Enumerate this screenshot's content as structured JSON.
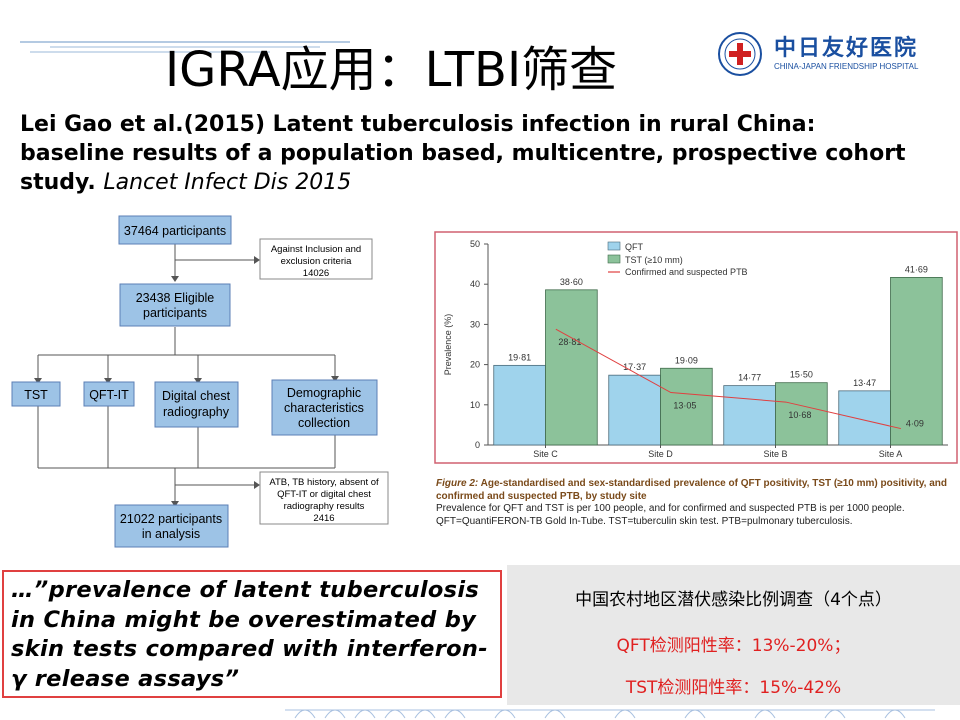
{
  "slide": {
    "title": "IGRA应用：LTBI筛查",
    "logo": {
      "name_cn": "中日友好医院",
      "name_en": "CHINA-JAPAN FRIENDSHIP HOSPITAL",
      "color": "#1a4fa0"
    },
    "citation": {
      "text": "Lei Gao et al.(2015) Latent tuberculosis infection in rural China: baseline results of a population based, multicentre, prospective cohort study.",
      "journal": "Lancet Infect Dis 2015"
    },
    "flowchart": {
      "participants": "37464 participants",
      "excluded": [
        "Against Inclusion and",
        "exclusion criteria",
        "14026"
      ],
      "eligible": [
        "23438 Eligible",
        "participants"
      ],
      "tests": [
        {
          "label": [
            "TST"
          ]
        },
        {
          "label": [
            "QFT-IT"
          ]
        },
        {
          "label": [
            "Digital chest",
            "radiography"
          ]
        },
        {
          "label": [
            "Demographic",
            "characteristics",
            "collection"
          ]
        }
      ],
      "excluded2": [
        "ATB, TB history, absent of",
        "QFT-IT or digital chest",
        "radiography results",
        "2416"
      ],
      "analysis": [
        "21022 participants",
        "in analysis"
      ]
    },
    "figure_caption": {
      "title": "Figure 2: Age-standardised and sex-standardised prevalence of QFT positivity, TST (≥10 mm) positivity, and confirmed and suspected PTB, by study site",
      "fig_label": "Figure 2:",
      "title_rest": " Age-standardised and sex-standardised prevalence of QFT positivity, TST (≥10 mm) positivity, and confirmed and suspected PTB, by study site",
      "line1": "Prevalence for QFT and TST is per 100 people, and for confirmed and suspected PTB is per 1000 people.",
      "line2": "QFT=QuantiFERON-TB Gold In-Tube. TST=tuberculin skin test. PTB=pulmonary tuberculosis."
    },
    "quote": "…”prevalence of latent tuberculosis in China might be overestimated by skin tests compared with interferon-γ release assays”",
    "summary": {
      "line1": "中国农村地区潜伏感染比例调查（4个点）",
      "line2": "QFT检测阳性率：13%-20%；",
      "line3": "TST检测阳性率：15%-42%"
    },
    "colors": {
      "qft": "#9fd3ec",
      "tst": "#8cc29a",
      "ptb_line": "#e04040",
      "flow_box": "#9dc3e6",
      "quote_border": "#e04040",
      "summary_red": "#e02020"
    }
  },
  "chart_data": {
    "type": "bar",
    "categories": [
      "Site C",
      "Site D",
      "Site B",
      "Site A"
    ],
    "series": [
      {
        "name": "QFT",
        "values": [
          19.81,
          17.37,
          14.77,
          13.47
        ],
        "labels": [
          "19·81",
          "17·37",
          "14·77",
          "13·47"
        ]
      },
      {
        "name": "TST (≥10 mm)",
        "values": [
          38.6,
          19.09,
          15.5,
          41.69
        ],
        "labels": [
          "38·60",
          "19·09",
          "15·50",
          "41·69"
        ]
      },
      {
        "name": "Confirmed and suspected PTB",
        "type": "line",
        "values": [
          28.81,
          13.05,
          10.68,
          4.09
        ],
        "labels": [
          "28·81",
          "13·05",
          "10·68",
          "4·09"
        ]
      }
    ],
    "ylabel": "Prevalence (%)",
    "yticks": [
      "0",
      "10",
      "20",
      "30",
      "40",
      "50"
    ],
    "ylim": [
      0,
      50
    ],
    "legend": "top-left"
  }
}
